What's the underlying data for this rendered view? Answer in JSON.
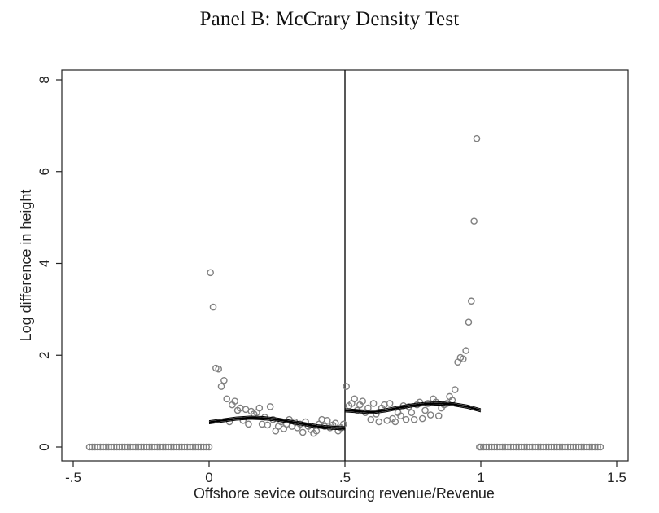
{
  "chart_data": {
    "type": "scatter",
    "title": "Panel B: McCrary Density Test",
    "xlabel": "Offshore sevice outsourcing revenue/Revenue",
    "ylabel": "Log difference in height",
    "xlim": [
      -0.5,
      1.5
    ],
    "ylim": [
      -0.2,
      8.2
    ],
    "xticks": [
      -0.5,
      0,
      0.5,
      1,
      1.5
    ],
    "xtick_labels": [
      "-.5",
      "0",
      ".5",
      "1",
      "1.5"
    ],
    "yticks": [
      0,
      2,
      4,
      6,
      8
    ],
    "ytick_labels": [
      "0",
      "2",
      "4",
      "6",
      "8"
    ],
    "grid": false,
    "cutoff": 0.5,
    "colors": {
      "points": "#808080",
      "fit": "#000000",
      "axis": "#222222"
    },
    "series": [
      {
        "kind": "points",
        "x": [
          -0.44,
          -0.43,
          -0.42,
          -0.41,
          -0.4,
          -0.39,
          -0.38,
          -0.37,
          -0.36,
          -0.35,
          -0.34,
          -0.33,
          -0.32,
          -0.31,
          -0.3,
          -0.29,
          -0.28,
          -0.27,
          -0.26,
          -0.25,
          -0.24,
          -0.23,
          -0.22,
          -0.21,
          -0.2,
          -0.19,
          -0.18,
          -0.17,
          -0.16,
          -0.15,
          -0.14,
          -0.13,
          -0.12,
          -0.11,
          -0.1,
          -0.09,
          -0.08,
          -0.07,
          -0.06,
          -0.05,
          -0.04,
          -0.03,
          -0.02,
          -0.01,
          0.0,
          0.005,
          0.015,
          0.025,
          0.035,
          0.045,
          0.055,
          0.065,
          0.075,
          0.085,
          0.095,
          0.105,
          0.115,
          0.125,
          0.135,
          0.145,
          0.155,
          0.165,
          0.175,
          0.185,
          0.195,
          0.205,
          0.215,
          0.225,
          0.235,
          0.245,
          0.255,
          0.265,
          0.275,
          0.285,
          0.295,
          0.305,
          0.315,
          0.325,
          0.335,
          0.345,
          0.355,
          0.365,
          0.375,
          0.385,
          0.395,
          0.405,
          0.415,
          0.425,
          0.435,
          0.445,
          0.455,
          0.465,
          0.475,
          0.485,
          0.495,
          0.505,
          0.515,
          0.525,
          0.535,
          0.545,
          0.555,
          0.565,
          0.575,
          0.585,
          0.595,
          0.605,
          0.615,
          0.625,
          0.635,
          0.645,
          0.655,
          0.665,
          0.675,
          0.685,
          0.695,
          0.705,
          0.715,
          0.725,
          0.735,
          0.745,
          0.755,
          0.765,
          0.775,
          0.785,
          0.795,
          0.805,
          0.815,
          0.825,
          0.835,
          0.845,
          0.855,
          0.865,
          0.875,
          0.885,
          0.895,
          0.905,
          0.915,
          0.925,
          0.935,
          0.945,
          0.955,
          0.965,
          0.975,
          0.985,
          0.995,
          1.0,
          1.01,
          1.02,
          1.03,
          1.04,
          1.05,
          1.06,
          1.07,
          1.08,
          1.09,
          1.1,
          1.11,
          1.12,
          1.13,
          1.14,
          1.15,
          1.16,
          1.17,
          1.18,
          1.19,
          1.2,
          1.21,
          1.22,
          1.23,
          1.24,
          1.25,
          1.26,
          1.27,
          1.28,
          1.29,
          1.3,
          1.31,
          1.32,
          1.33,
          1.34,
          1.35,
          1.36,
          1.37,
          1.38,
          1.39,
          1.4,
          1.41,
          1.42,
          1.43,
          1.44
        ],
        "y": [
          0,
          0,
          0,
          0,
          0,
          0,
          0,
          0,
          0,
          0,
          0,
          0,
          0,
          0,
          0,
          0,
          0,
          0,
          0,
          0,
          0,
          0,
          0,
          0,
          0,
          0,
          0,
          0,
          0,
          0,
          0,
          0,
          0,
          0,
          0,
          0,
          0,
          0,
          0,
          0,
          0,
          0,
          0,
          0,
          0,
          3.8,
          3.05,
          1.72,
          1.7,
          1.32,
          1.45,
          1.05,
          0.55,
          0.92,
          1.0,
          0.8,
          0.85,
          0.58,
          0.82,
          0.5,
          0.78,
          0.72,
          0.75,
          0.85,
          0.5,
          0.65,
          0.48,
          0.88,
          0.6,
          0.35,
          0.45,
          0.55,
          0.4,
          0.5,
          0.6,
          0.45,
          0.55,
          0.42,
          0.5,
          0.32,
          0.55,
          0.45,
          0.38,
          0.3,
          0.35,
          0.5,
          0.6,
          0.45,
          0.58,
          0.42,
          0.48,
          0.52,
          0.35,
          0.42,
          0.5,
          1.32,
          0.9,
          0.95,
          1.05,
          0.8,
          0.92,
          1.0,
          0.75,
          0.85,
          0.6,
          0.95,
          0.72,
          0.55,
          0.85,
          0.92,
          0.58,
          0.95,
          0.62,
          0.55,
          0.75,
          0.68,
          0.9,
          0.6,
          0.88,
          0.75,
          0.6,
          0.92,
          0.98,
          0.62,
          0.8,
          0.95,
          0.7,
          1.05,
          0.98,
          0.68,
          0.85,
          0.92,
          0.95,
          1.1,
          1.02,
          1.25,
          1.85,
          1.95,
          1.92,
          2.1,
          2.72,
          3.18,
          4.92,
          6.72,
          0,
          0,
          0,
          0,
          0,
          0,
          0,
          0,
          0,
          0,
          0,
          0,
          0,
          0,
          0,
          0,
          0,
          0,
          0,
          0,
          0,
          0,
          0,
          0,
          0,
          0,
          0,
          0,
          0,
          0,
          0,
          0,
          0,
          0,
          0,
          0,
          0,
          0,
          0,
          0,
          0,
          0,
          0,
          0,
          0,
          0
        ]
      },
      {
        "kind": "fit-left",
        "x": [
          0.0,
          0.05,
          0.1,
          0.15,
          0.2,
          0.25,
          0.3,
          0.35,
          0.4,
          0.45,
          0.5
        ],
        "y": [
          0.54,
          0.58,
          0.62,
          0.64,
          0.63,
          0.6,
          0.55,
          0.5,
          0.45,
          0.42,
          0.41
        ]
      },
      {
        "kind": "fit-right",
        "x": [
          0.5,
          0.55,
          0.6,
          0.65,
          0.7,
          0.75,
          0.8,
          0.85,
          0.9,
          0.95,
          1.0
        ],
        "y": [
          0.8,
          0.78,
          0.76,
          0.8,
          0.86,
          0.91,
          0.94,
          0.95,
          0.93,
          0.88,
          0.8
        ]
      }
    ]
  }
}
